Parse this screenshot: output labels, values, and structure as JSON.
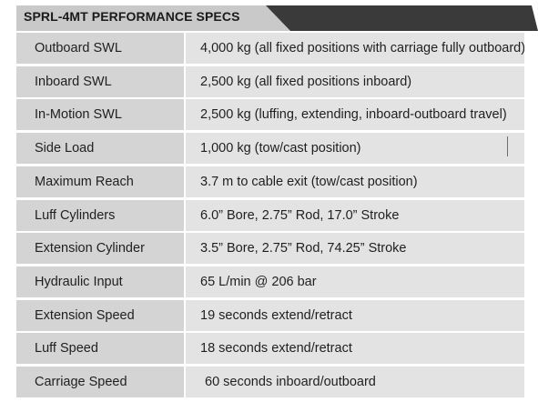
{
  "header": {
    "title": "SPRL-4MT PERFORMANCE SPECS"
  },
  "colors": {
    "header_tab": "#c9c9c9",
    "header_bar": "#3a3a3a",
    "label_cell": "#d4d4d4",
    "value_cell": "#e3e3e3"
  },
  "specs": [
    {
      "label": "Outboard SWL",
      "value": "4,000 kg (all fixed positions with carriage fully outboard)"
    },
    {
      "label": "Inboard SWL",
      "value": "2,500 kg (all fixed positions inboard)"
    },
    {
      "label": "In-Motion SWL",
      "value": "2,500 kg (luffing, extending, inboard-outboard travel)"
    },
    {
      "label": "Side Load",
      "value": "1,000 kg (tow/cast position)"
    },
    {
      "label": "Maximum Reach",
      "value": "3.7 m to cable exit (tow/cast position)"
    },
    {
      "label": "Luff Cylinders",
      "value": "6.0” Bore, 2.75” Rod, 17.0” Stroke"
    },
    {
      "label": "Extension Cylinder",
      "value": "3.5” Bore, 2.75” Rod, 74.25” Stroke"
    },
    {
      "label": "Hydraulic Input",
      "value": "65 L/min @ 206 bar"
    },
    {
      "label": "Extension Speed",
      "value": "19 seconds extend/retract"
    },
    {
      "label": "Luff Speed",
      "value": "18 seconds extend/retract"
    },
    {
      "label": "Carriage Speed",
      "value": "60 seconds inboard/outboard"
    }
  ]
}
